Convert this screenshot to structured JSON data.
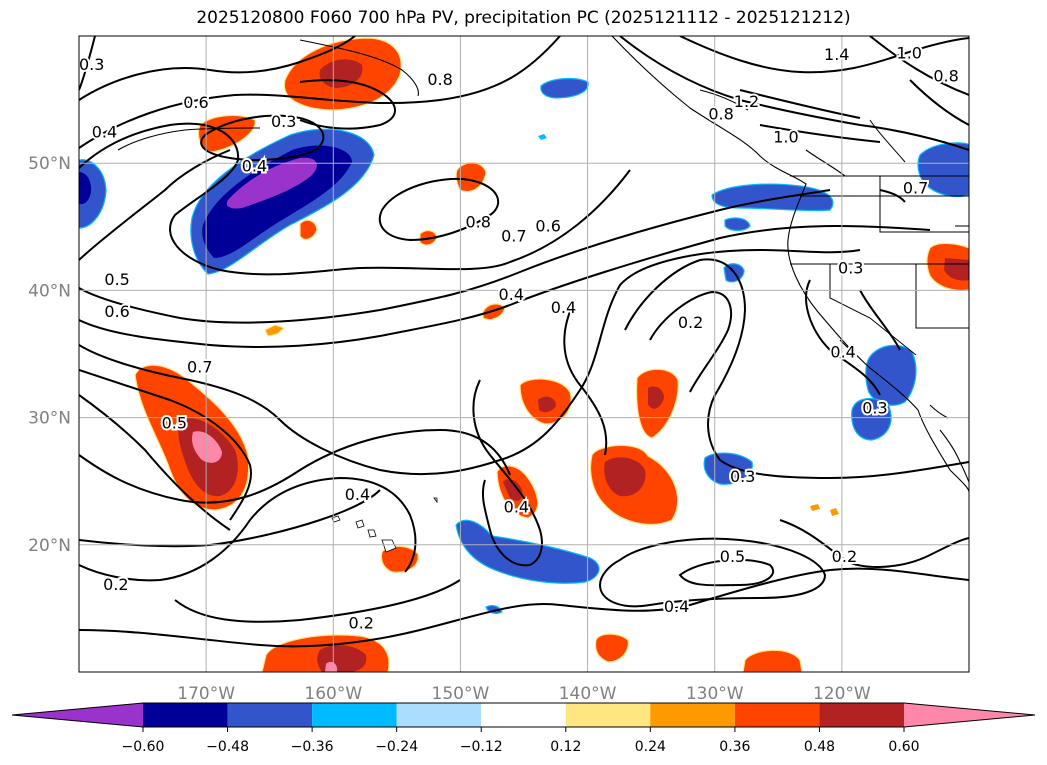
{
  "title": "2025120800 F060 700 hPa PV, precipitation PC (2025121112 - 2025121212)",
  "colors": {
    "bins": [
      "#9933cc",
      "#000099",
      "#3355cc",
      "#00bbff",
      "#aaddff",
      "#ffffff",
      "#ffe680",
      "#ff9900",
      "#ff4400",
      "#b22222",
      "#ff88aa"
    ],
    "contour": "#000000",
    "grid": "#b0b0b0",
    "coast": "#000000"
  },
  "chart_data": {
    "type": "map",
    "projection": "equirectangular",
    "lon_range": [
      -180,
      -110
    ],
    "lat_range": [
      10,
      60
    ],
    "lon_ticks": [
      {
        "value": -170,
        "label": "170°W"
      },
      {
        "value": -160,
        "label": "160°W"
      },
      {
        "value": -150,
        "label": "150°W"
      },
      {
        "value": -140,
        "label": "140°W"
      },
      {
        "value": -130,
        "label": "130°W"
      },
      {
        "value": -120,
        "label": "120°W"
      }
    ],
    "lat_ticks": [
      {
        "value": 20,
        "label": "20°N"
      },
      {
        "value": 30,
        "label": "30°N"
      },
      {
        "value": 40,
        "label": "40°N"
      },
      {
        "value": 50,
        "label": "50°N"
      }
    ],
    "colorbar": {
      "ticks": [
        "−0.60",
        "−0.48",
        "−0.36",
        "−0.24",
        "−0.12",
        "0.12",
        "0.24",
        "0.36",
        "0.48",
        "0.60"
      ],
      "extend": "both"
    },
    "contour_labels": [
      {
        "text": "0.3",
        "lon": -179,
        "lat": 57.8
      },
      {
        "text": "0.6",
        "lon": -170.8,
        "lat": 54.8
      },
      {
        "text": "0.8",
        "lon": -151.6,
        "lat": 56.6
      },
      {
        "text": "0.3",
        "lon": -163.9,
        "lat": 53.3
      },
      {
        "text": "0.4",
        "lon": -178,
        "lat": 52.5
      },
      {
        "text": "0.4",
        "lon": -166.2,
        "lat": 49.8
      },
      {
        "text": "0.8",
        "lon": -148.6,
        "lat": 45.4
      },
      {
        "text": "0.7",
        "lon": -145.8,
        "lat": 44.3
      },
      {
        "text": "0.6",
        "lon": -143.1,
        "lat": 45.1
      },
      {
        "text": "0.5",
        "lon": -177,
        "lat": 40.9
      },
      {
        "text": "0.6",
        "lon": -177,
        "lat": 38.4
      },
      {
        "text": "0.4",
        "lon": -146,
        "lat": 39.7
      },
      {
        "text": "0.4",
        "lon": -141.9,
        "lat": 38.7
      },
      {
        "text": "0.7",
        "lon": -170.5,
        "lat": 34.0
      },
      {
        "text": "0.5",
        "lon": -172.5,
        "lat": 29.6
      },
      {
        "text": "0.2",
        "lon": -131.9,
        "lat": 37.5
      },
      {
        "text": "0.3",
        "lon": -119.3,
        "lat": 41.8
      },
      {
        "text": "0.4",
        "lon": -119.9,
        "lat": 35.2
      },
      {
        "text": "0.3",
        "lon": -117.4,
        "lat": 30.8
      },
      {
        "text": "0.3",
        "lon": -127.8,
        "lat": 25.4
      },
      {
        "text": "0.4",
        "lon": -158.1,
        "lat": 24.0
      },
      {
        "text": "0.4",
        "lon": -145.6,
        "lat": 23.0
      },
      {
        "text": "0.5",
        "lon": -128.6,
        "lat": 19.1
      },
      {
        "text": "0.2",
        "lon": -119.8,
        "lat": 19.1
      },
      {
        "text": "0.2",
        "lon": -177.1,
        "lat": 16.9
      },
      {
        "text": "0.4",
        "lon": -133,
        "lat": 15.2
      },
      {
        "text": "0.2",
        "lon": -157.8,
        "lat": 13.9
      },
      {
        "text": "1.0",
        "lon": -114.7,
        "lat": 58.7
      },
      {
        "text": "1.4",
        "lon": -120.4,
        "lat": 58.6
      },
      {
        "text": "0.8",
        "lon": -111.8,
        "lat": 56.9
      },
      {
        "text": "1.2",
        "lon": -127.5,
        "lat": 54.9
      },
      {
        "text": "0.8",
        "lon": -129.5,
        "lat": 53.9
      },
      {
        "text": "1.0",
        "lon": -124.4,
        "lat": 52.1
      },
      {
        "text": "0.7",
        "lon": -114.2,
        "lat": 48.1
      }
    ]
  }
}
